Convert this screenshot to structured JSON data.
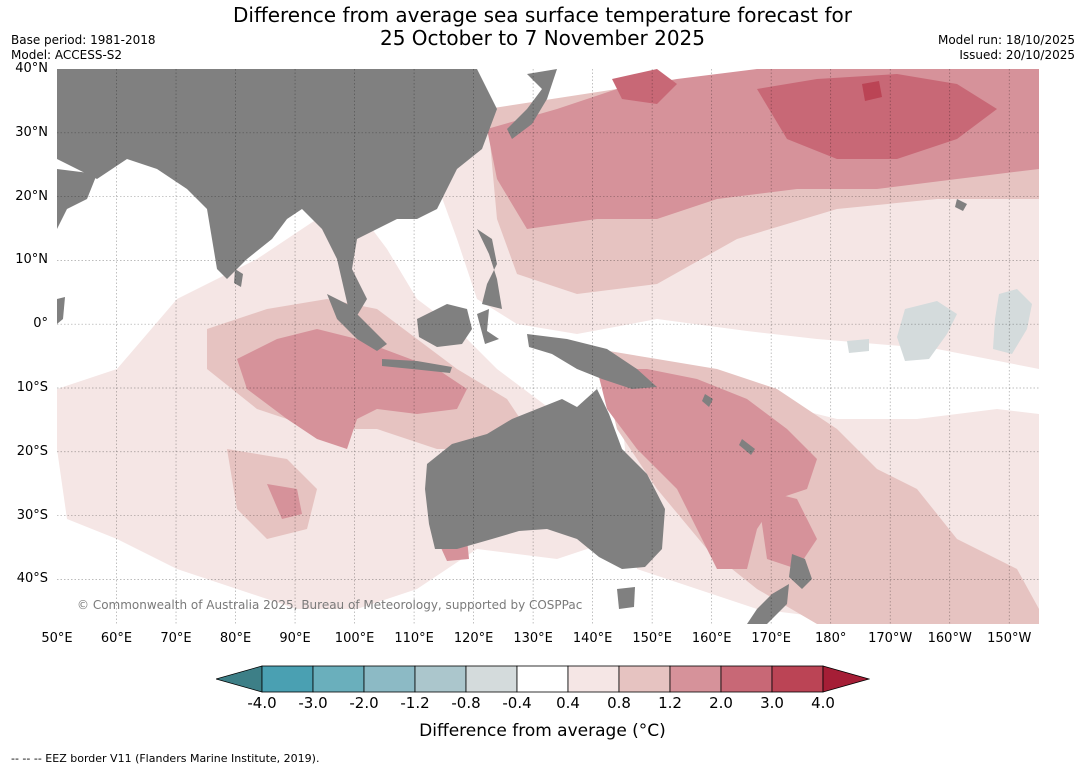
{
  "title": {
    "line1": "Difference from average sea surface temperature forecast for",
    "line2": "25 October to 7 November 2025"
  },
  "meta": {
    "base_period": "Base period: 1981-2018",
    "model": "Model: ACCESS-S2",
    "model_run": "Model run: 18/10/2025",
    "issued": "Issued: 20/10/2025"
  },
  "map": {
    "extent": {
      "lon_min": 50,
      "lon_max": 215,
      "lat_min": -47,
      "lat_max": 40
    },
    "lat_labels": [
      {
        "lat": 40,
        "text": "40°N"
      },
      {
        "lat": 30,
        "text": "30°N"
      },
      {
        "lat": 20,
        "text": "20°N"
      },
      {
        "lat": 10,
        "text": "10°N"
      },
      {
        "lat": 0,
        "text": "0°"
      },
      {
        "lat": -10,
        "text": "10°S"
      },
      {
        "lat": -20,
        "text": "20°S"
      },
      {
        "lat": -30,
        "text": "30°S"
      },
      {
        "lat": -40,
        "text": "40°S"
      }
    ],
    "lon_labels": [
      {
        "lon": 50,
        "text": "50°E"
      },
      {
        "lon": 60,
        "text": "60°E"
      },
      {
        "lon": 70,
        "text": "70°E"
      },
      {
        "lon": 80,
        "text": "80°E"
      },
      {
        "lon": 90,
        "text": "90°E"
      },
      {
        "lon": 100,
        "text": "100°E"
      },
      {
        "lon": 110,
        "text": "110°E"
      },
      {
        "lon": 120,
        "text": "120°E"
      },
      {
        "lon": 130,
        "text": "130°E"
      },
      {
        "lon": 140,
        "text": "140°E"
      },
      {
        "lon": 150,
        "text": "150°E"
      },
      {
        "lon": 160,
        "text": "160°E"
      },
      {
        "lon": 170,
        "text": "170°E"
      },
      {
        "lon": 180,
        "text": "180°"
      },
      {
        "lon": 190,
        "text": "170°W"
      },
      {
        "lon": 200,
        "text": "160°W"
      },
      {
        "lon": 210,
        "text": "150°W"
      }
    ],
    "copyright": "© Commonwealth of Australia 2025, Bureau of Meteorology, supported by COSPPac"
  },
  "colorbar": {
    "ticks": [
      "-4.0",
      "-3.0",
      "-2.0",
      "-1.2",
      "-0.8",
      "-0.4",
      "0.4",
      "0.8",
      "1.2",
      "2.0",
      "3.0",
      "4.0"
    ],
    "colors": [
      "#3d7f87",
      "#4aa0b2",
      "#6aafbc",
      "#8cbac5",
      "#abc6cc",
      "#d4dbdc",
      "#ffffff",
      "#f5e6e5",
      "#e6c3c1",
      "#d6929a",
      "#c86876",
      "#bb4455",
      "#a51e36"
    ],
    "label": "Difference from average (°C)"
  },
  "footnote": "--  --  -- EEZ border V11 (Flanders Marine Institute, 2019)."
}
